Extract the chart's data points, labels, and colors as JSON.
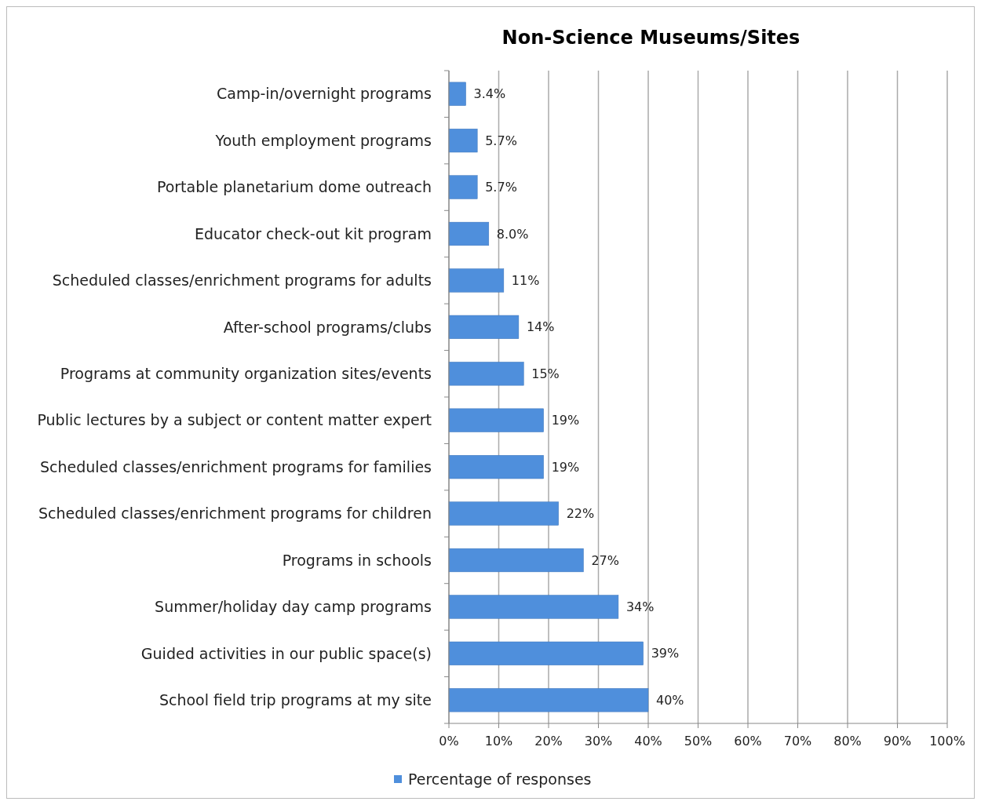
{
  "chart_data": {
    "type": "bar",
    "orientation": "horizontal",
    "title": "Non-Science Museums/Sites",
    "categories": [
      "Camp-in/overnight programs",
      "Youth employment programs",
      "Portable planetarium dome outreach",
      "Educator check-out kit program",
      "Scheduled classes/enrichment programs for adults",
      "After-school programs/clubs",
      "Programs at community organization sites/events",
      "Public lectures by a subject or content matter expert",
      "Scheduled classes/enrichment programs for families",
      "Scheduled classes/enrichment programs for children",
      "Programs in schools",
      "Summer/holiday day camp programs",
      "Guided activities in our public space(s)",
      "School field trip programs at my site"
    ],
    "series": [
      {
        "name": "Percentage of responses",
        "color": "#4f8fdc",
        "values": [
          3.4,
          5.7,
          5.7,
          8.0,
          11,
          14,
          15,
          19,
          19,
          22,
          27,
          34,
          39,
          40
        ],
        "value_labels": [
          "3.4%",
          "5.7%",
          "5.7%",
          "8.0%",
          "11%",
          "14%",
          "15%",
          "19%",
          "19%",
          "22%",
          "27%",
          "34%",
          "39%",
          "40%"
        ]
      }
    ],
    "xlim": [
      0,
      100
    ],
    "xticks": [
      {
        "value": 0,
        "label": "0%"
      },
      {
        "value": 10,
        "label": "10%"
      },
      {
        "value": 20,
        "label": "20%"
      },
      {
        "value": 30,
        "label": "30%"
      },
      {
        "value": 40,
        "label": "40%"
      },
      {
        "value": 50,
        "label": "50%"
      },
      {
        "value": 60,
        "label": "60%"
      },
      {
        "value": 70,
        "label": "70%"
      },
      {
        "value": 80,
        "label": "80%"
      },
      {
        "value": 90,
        "label": "90%"
      },
      {
        "value": 100,
        "label": "100%"
      }
    ],
    "grid": "x",
    "legend": "bottom"
  }
}
